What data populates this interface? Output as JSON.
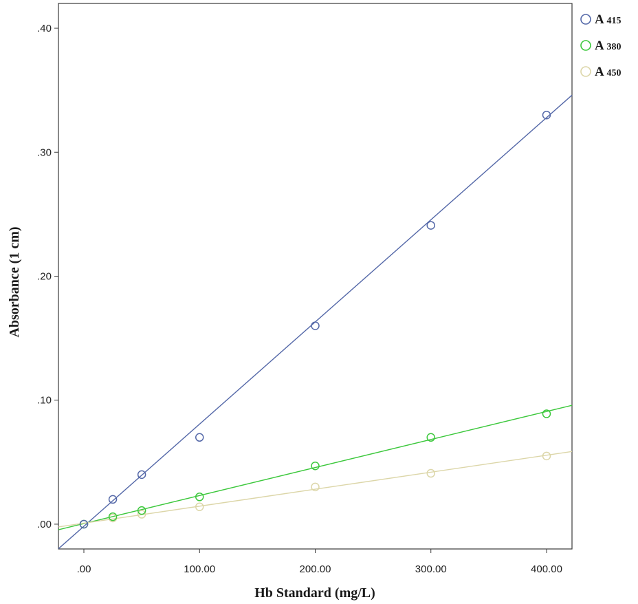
{
  "chart_data": {
    "type": "scatter",
    "xlabel": "Hb Standard (mg/L)",
    "ylabel": "Absorbance (1 cm)",
    "xlim": [
      -22,
      422
    ],
    "ylim": [
      -0.02,
      0.42
    ],
    "x_ticks": [
      0,
      100,
      200,
      300,
      400
    ],
    "x_tick_labels": [
      ".00",
      "100.00",
      "200.00",
      "300.00",
      "400.00"
    ],
    "y_ticks": [
      0,
      0.1,
      0.2,
      0.3,
      0.4
    ],
    "y_tick_labels": [
      ".00",
      ".10",
      ".20",
      ".30",
      ".40"
    ],
    "grid": false,
    "legend_position": "right",
    "fit_lines": true,
    "series": [
      {
        "name_prefix": "A",
        "name_suffix": "415",
        "color": "#5468a8",
        "x": [
          0,
          25,
          50,
          100,
          200,
          300,
          400
        ],
        "y": [
          0.0,
          0.02,
          0.04,
          0.07,
          0.16,
          0.241,
          0.33
        ],
        "fit": {
          "slope": 0.000824,
          "intercept": -0.0017
        }
      },
      {
        "name_prefix": "A",
        "name_suffix": "380",
        "color": "#3cc83c",
        "x": [
          0,
          25,
          50,
          100,
          200,
          300,
          400
        ],
        "y": [
          0.0,
          0.006,
          0.011,
          0.022,
          0.047,
          0.07,
          0.089
        ],
        "fit": {
          "slope": 0.000226,
          "intercept": 0.0005
        }
      },
      {
        "name_prefix": "A",
        "name_suffix": "450",
        "color": "#dcd6a8",
        "x": [
          0,
          25,
          50,
          100,
          200,
          300,
          400
        ],
        "y": [
          0.0,
          0.005,
          0.008,
          0.014,
          0.03,
          0.041,
          0.055
        ],
        "fit": {
          "slope": 0.000137,
          "intercept": 0.0008
        }
      }
    ]
  }
}
